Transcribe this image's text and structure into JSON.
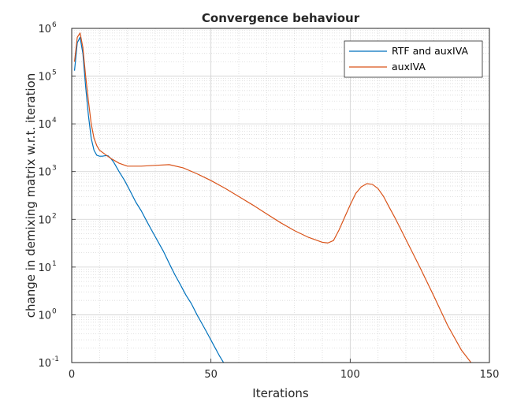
{
  "chart_data": {
    "type": "line",
    "title": "Convergence behaviour",
    "xlabel": "Iterations",
    "ylabel": "change in demixing matrix w.r.t. iteration",
    "xlim": [
      0,
      150
    ],
    "ylim_log10": [
      -1,
      6
    ],
    "yscale": "log",
    "grid": true,
    "minor_grid": true,
    "legend_position": "top-right",
    "x_ticks": [
      {
        "value": 0,
        "label": "0"
      },
      {
        "value": 50,
        "label": "50"
      },
      {
        "value": 100,
        "label": "100"
      },
      {
        "value": 150,
        "label": "150"
      }
    ],
    "y_ticks": [
      {
        "exp": -1,
        "base": "10",
        "sup": "-1"
      },
      {
        "exp": 0,
        "base": "10",
        "sup": "0"
      },
      {
        "exp": 1,
        "base": "10",
        "sup": "1"
      },
      {
        "exp": 2,
        "base": "10",
        "sup": "2"
      },
      {
        "exp": 3,
        "base": "10",
        "sup": "3"
      },
      {
        "exp": 4,
        "base": "10",
        "sup": "4"
      },
      {
        "exp": 5,
        "base": "10",
        "sup": "5"
      },
      {
        "exp": 6,
        "base": "10",
        "sup": "6"
      }
    ],
    "series": [
      {
        "name": "RTF and auxIVA",
        "color": "#0072BD",
        "x": [
          1,
          2,
          3,
          4,
          5,
          6,
          7,
          8,
          9,
          10,
          11,
          12,
          13,
          14,
          15,
          17,
          19,
          21,
          23,
          25,
          27,
          29,
          31,
          33,
          35,
          37,
          39,
          41,
          43,
          45,
          47,
          49,
          51,
          53,
          55
        ],
        "y": [
          130000,
          500000,
          650000,
          300000,
          60000,
          15000,
          5000,
          2800,
          2200,
          2100,
          2100,
          2150,
          2150,
          1900,
          1600,
          1000,
          650,
          390,
          230,
          150,
          90,
          55,
          34,
          21,
          12,
          7,
          4.3,
          2.6,
          1.7,
          1.0,
          0.62,
          0.38,
          0.23,
          0.14,
          0.09
        ]
      },
      {
        "name": "auxIVA",
        "color": "#D95319",
        "x": [
          1,
          2,
          3,
          4,
          5,
          6,
          7,
          8,
          9,
          10,
          12,
          14,
          17,
          20,
          25,
          30,
          35,
          40,
          45,
          50,
          55,
          60,
          65,
          70,
          75,
          80,
          85,
          90,
          92,
          94,
          96,
          98,
          100,
          102,
          104,
          106,
          108,
          110,
          112,
          114,
          116,
          118,
          120,
          125,
          130,
          135,
          140,
          144
        ],
        "y": [
          200000,
          650000,
          800000,
          400000,
          100000,
          30000,
          10000,
          5000,
          3500,
          2800,
          2300,
          1900,
          1500,
          1300,
          1300,
          1350,
          1400,
          1200,
          900,
          650,
          450,
          300,
          200,
          130,
          85,
          58,
          42,
          33,
          32,
          36,
          60,
          110,
          200,
          350,
          480,
          560,
          540,
          440,
          300,
          180,
          110,
          65,
          38,
          10,
          2.5,
          0.6,
          0.18,
          0.09
        ]
      }
    ]
  }
}
